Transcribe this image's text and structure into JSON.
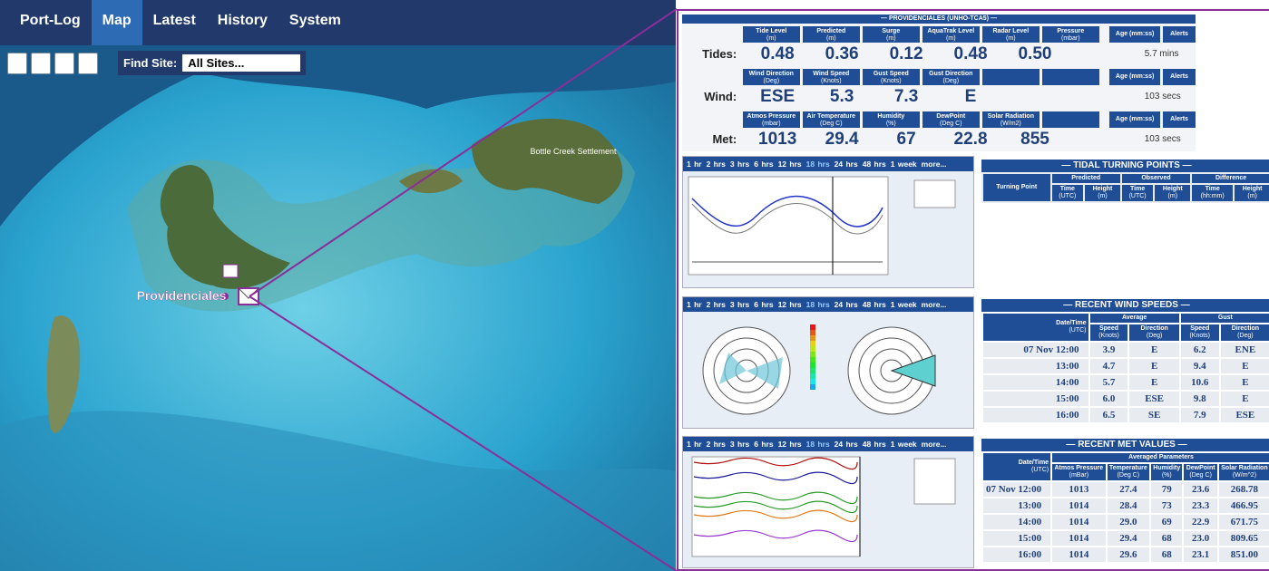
{
  "nav": {
    "tabs": [
      "Port-Log",
      "Map",
      "Latest",
      "History",
      "System"
    ],
    "find_site_label": "Find Site:",
    "find_site_value": "All Sites..."
  },
  "map": {
    "place": "Providenciales",
    "settlement": "Bottle Creek Settlement"
  },
  "station": {
    "title": "— PROVIDENCIALES (UNHO-TCA5) —",
    "age_header": "Age (mm:ss)",
    "alerts_header": "Alerts",
    "rows": [
      {
        "label": "Tides:",
        "headers": [
          {
            "name": "Tide Level",
            "unit": "(m)"
          },
          {
            "name": "Predicted",
            "unit": "(m)"
          },
          {
            "name": "Surge",
            "unit": "(m)"
          },
          {
            "name": "AquaTrak Level",
            "unit": "(m)"
          },
          {
            "name": "Radar Level",
            "unit": "(m)"
          },
          {
            "name": "Pressure",
            "unit": "(mbar)"
          }
        ],
        "values": [
          "0.48",
          "0.36",
          "0.12",
          "0.48",
          "0.50"
        ],
        "age": "5.7 mins"
      },
      {
        "label": "Wind:",
        "headers": [
          {
            "name": "Wind Direction",
            "unit": "(Deg)"
          },
          {
            "name": "Wind Speed",
            "unit": "(Knots)"
          },
          {
            "name": "Gust Speed",
            "unit": "(Knots)"
          },
          {
            "name": "Gust Direction",
            "unit": "(Deg)"
          }
        ],
        "values": [
          "ESE",
          "5.3",
          "7.3",
          "E"
        ],
        "age": "103 secs"
      },
      {
        "label": "Met:",
        "headers": [
          {
            "name": "Atmos Pressure",
            "unit": "(mbar)"
          },
          {
            "name": "Air Temperature",
            "unit": "(Deg C)"
          },
          {
            "name": "Humidity",
            "unit": "(%)"
          },
          {
            "name": "DewPoint",
            "unit": "(Deg C)"
          },
          {
            "name": "Solar Radiation",
            "unit": "(W/m2)"
          }
        ],
        "values": [
          "1013",
          "29.4",
          "67",
          "22.8",
          "855"
        ],
        "age": "103 secs"
      }
    ]
  },
  "time_ranges": [
    "1 hr",
    "2 hrs",
    "3 hrs",
    "6 hrs",
    "12 hrs",
    "18 hrs",
    "24 hrs",
    "48 hrs",
    "1 week",
    "more..."
  ],
  "tidal": {
    "title": "— TIDAL TURNING POINTS —",
    "row_header": "Turning Point",
    "groups": [
      "Predicted",
      "Observed",
      "Difference"
    ],
    "columns": [
      {
        "name": "Time",
        "unit": "(UTC)"
      },
      {
        "name": "Height",
        "unit": "(m)"
      },
      {
        "name": "Time",
        "unit": "(UTC)"
      },
      {
        "name": "Height",
        "unit": "(m)"
      },
      {
        "name": "Time",
        "unit": "(hh:mm)"
      },
      {
        "name": "Height",
        "unit": "(m)"
      }
    ]
  },
  "wind_table": {
    "title": "— RECENT WIND SPEEDS —",
    "date_header": {
      "name": "Date/Time",
      "unit": "(UTC)"
    },
    "groups": [
      "Average",
      "Gust"
    ],
    "columns": [
      {
        "name": "Speed",
        "unit": "(Knots)"
      },
      {
        "name": "Direction",
        "unit": "(Deg)"
      },
      {
        "name": "Speed",
        "unit": "(Knots)"
      },
      {
        "name": "Direction",
        "unit": "(Deg)"
      }
    ],
    "rows": [
      [
        "07 Nov 12:00",
        "3.9",
        "E",
        "6.2",
        "ENE"
      ],
      [
        "13:00",
        "4.7",
        "E",
        "9.4",
        "E"
      ],
      [
        "14:00",
        "5.7",
        "E",
        "10.6",
        "E"
      ],
      [
        "15:00",
        "6.0",
        "ESE",
        "9.8",
        "E"
      ],
      [
        "16:00",
        "6.5",
        "SE",
        "7.9",
        "ESE"
      ]
    ]
  },
  "met_table": {
    "title": "— RECENT MET VALUES —",
    "date_header": {
      "name": "Date/Time",
      "unit": "(UTC)"
    },
    "groups": [
      "Averaged Parameters"
    ],
    "columns": [
      {
        "name": "Atmos Pressure",
        "unit": "(mBar)"
      },
      {
        "name": "Temperature",
        "unit": "(Deg C)"
      },
      {
        "name": "Humidity",
        "unit": "(%)"
      },
      {
        "name": "DewPoint",
        "unit": "(Deg C)"
      },
      {
        "name": "Solar Radiation",
        "unit": "(W/m^2)"
      }
    ],
    "rows": [
      [
        "07 Nov 12:00",
        "1013",
        "27.4",
        "79",
        "23.6",
        "268.78"
      ],
      [
        "13:00",
        "1014",
        "28.4",
        "73",
        "23.3",
        "466.95"
      ],
      [
        "14:00",
        "1014",
        "29.0",
        "69",
        "22.9",
        "671.75"
      ],
      [
        "15:00",
        "1014",
        "29.4",
        "68",
        "23.0",
        "809.65"
      ],
      [
        "16:00",
        "1014",
        "29.6",
        "68",
        "23.1",
        "851.00"
      ]
    ]
  }
}
